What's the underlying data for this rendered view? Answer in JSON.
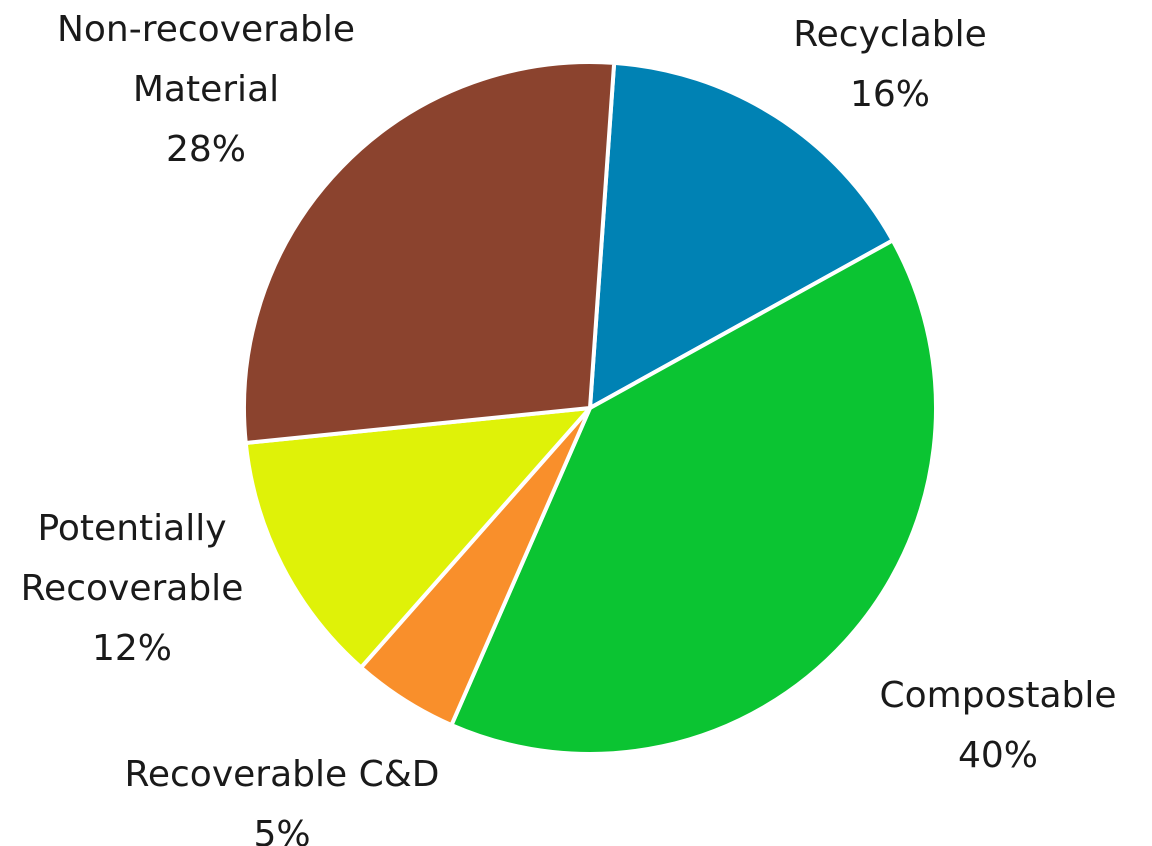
{
  "chart_data": {
    "type": "pie",
    "title": "",
    "start_angle_deg": 86,
    "direction": "clockwise",
    "legend": "none",
    "slices": [
      {
        "label": "Recyclable",
        "value": 16,
        "display": "16%",
        "color": "#0082B4"
      },
      {
        "label": "Compostable",
        "value": 40,
        "display": "40%",
        "color": "#0BC432"
      },
      {
        "label": "Recoverable C&D",
        "value": 5,
        "display": "5%",
        "color": "#F98F2B"
      },
      {
        "label": "Potentially Recoverable",
        "value": 12,
        "display": "12%",
        "color": "#DFF208"
      },
      {
        "label": "Non-recoverable Material",
        "value": 28,
        "display": "28%",
        "color": "#8B432E"
      }
    ]
  }
}
